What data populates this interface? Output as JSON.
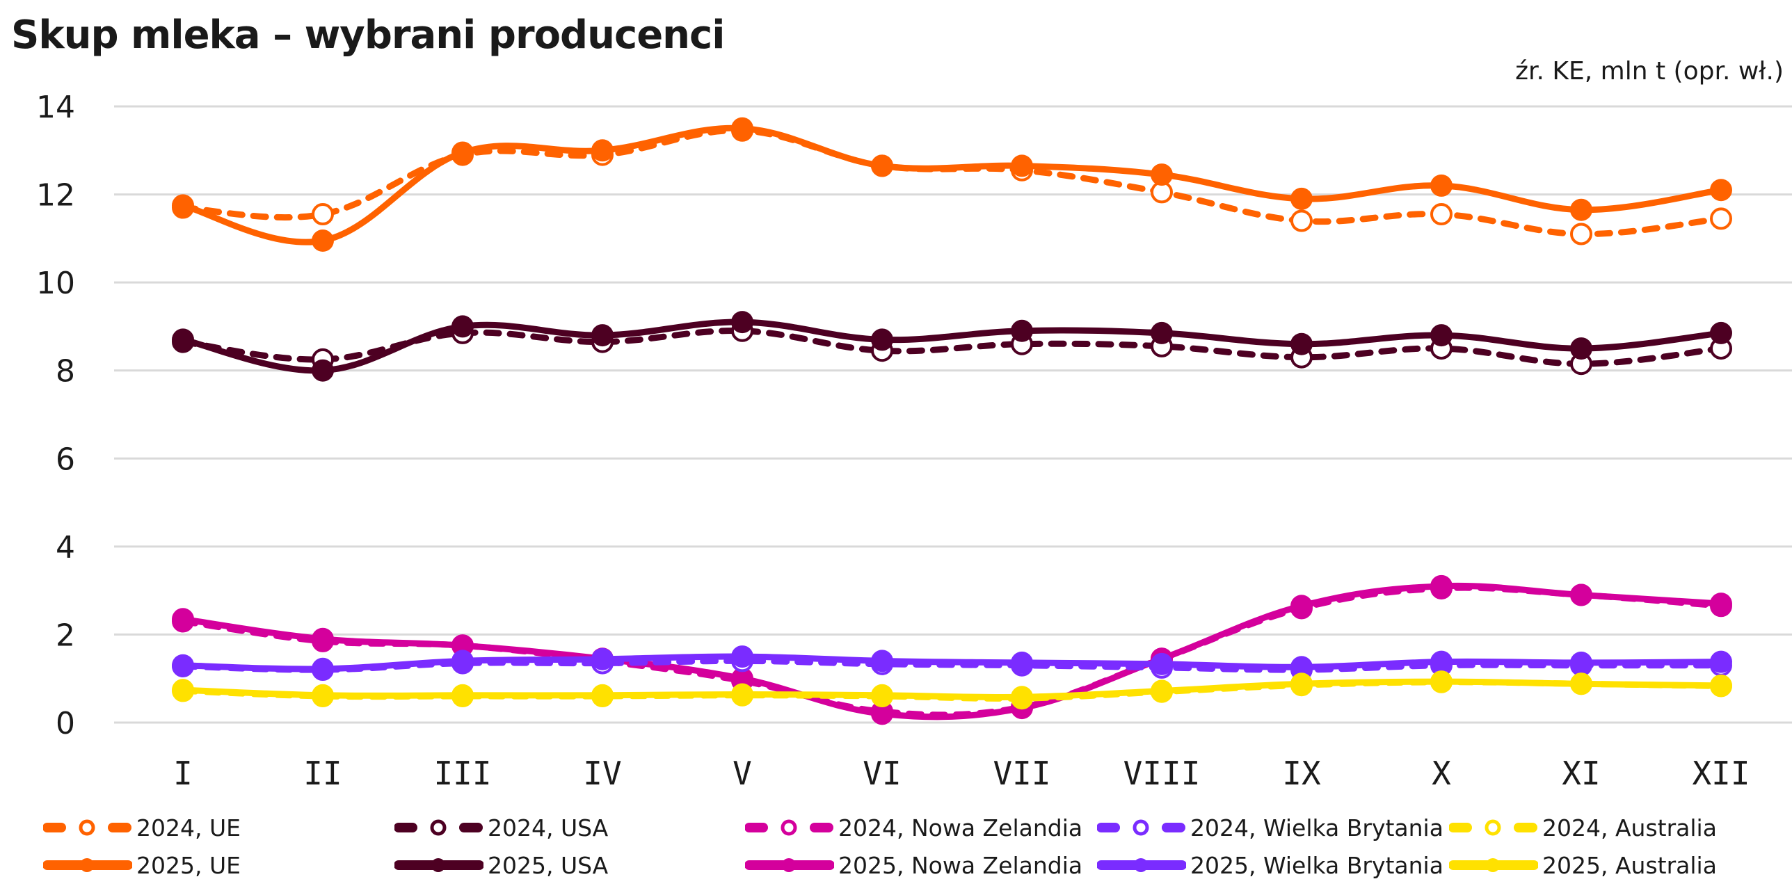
{
  "chart_data": {
    "type": "line",
    "title": "Skup mleka – wybrani producenci",
    "source_note": "źr. KE, mln t (opr. wł.)",
    "xlabel": "",
    "ylabel": "",
    "categories": [
      "I",
      "II",
      "III",
      "IV",
      "V",
      "VI",
      "VII",
      "VIII",
      "IX",
      "X",
      "XI",
      "XII"
    ],
    "ylim": [
      0,
      14
    ],
    "yticks": [
      "0",
      "2",
      "4",
      "6",
      "8",
      "10",
      "12",
      "14"
    ],
    "grid": true,
    "legend_position": "bottom",
    "series": [
      {
        "name": "2024, UE",
        "color": "#ff6200",
        "style": "dashed",
        "marker": "open",
        "values": [
          11.7,
          11.55,
          12.9,
          12.9,
          13.45,
          12.65,
          12.55,
          12.05,
          11.4,
          11.55,
          11.1,
          11.45
        ]
      },
      {
        "name": "2025, UE",
        "color": "#ff6200",
        "style": "solid",
        "marker": "filled",
        "values": [
          11.75,
          10.95,
          12.95,
          13.0,
          13.5,
          12.65,
          12.65,
          12.45,
          11.9,
          12.2,
          11.65,
          12.1
        ]
      },
      {
        "name": "2024, USA",
        "color": "#4d0022",
        "style": "dashed",
        "marker": "open",
        "values": [
          8.65,
          8.25,
          8.85,
          8.65,
          8.9,
          8.45,
          8.6,
          8.55,
          8.3,
          8.5,
          8.15,
          8.5
        ]
      },
      {
        "name": "2025, USA",
        "color": "#4d0022",
        "style": "solid",
        "marker": "filled",
        "values": [
          8.7,
          8.0,
          9.0,
          8.8,
          9.1,
          8.7,
          8.9,
          8.85,
          8.6,
          8.8,
          8.5,
          8.85
        ]
      },
      {
        "name": "2024, Nowa Zelandia",
        "color": "#d4009c",
        "style": "dashed",
        "marker": "open",
        "values": [
          2.3,
          1.85,
          1.75,
          1.4,
          0.95,
          0.25,
          0.35,
          1.45,
          2.6,
          3.05,
          2.9,
          2.65
        ]
      },
      {
        "name": "2025, Nowa Zelandia",
        "color": "#d4009c",
        "style": "solid",
        "marker": "filled",
        "values": [
          2.35,
          1.9,
          1.75,
          1.45,
          1.0,
          0.2,
          0.33,
          1.45,
          2.65,
          3.1,
          2.9,
          2.7
        ]
      },
      {
        "name": "2024, Wielka Brytania",
        "color": "#7a2cff",
        "style": "dashed",
        "marker": "open",
        "values": [
          1.28,
          1.2,
          1.35,
          1.35,
          1.4,
          1.33,
          1.3,
          1.25,
          1.2,
          1.3,
          1.3,
          1.3
        ]
      },
      {
        "name": "2025, Wielka Brytania",
        "color": "#7a2cff",
        "style": "solid",
        "marker": "filled",
        "values": [
          1.3,
          1.22,
          1.4,
          1.44,
          1.5,
          1.4,
          1.36,
          1.33,
          1.26,
          1.38,
          1.36,
          1.38
        ]
      },
      {
        "name": "2024, Australia",
        "color": "#ffe100",
        "style": "dashed",
        "marker": "open",
        "values": [
          0.72,
          0.6,
          0.6,
          0.6,
          0.62,
          0.6,
          0.55,
          0.7,
          0.85,
          0.92,
          0.88,
          0.83
        ]
      },
      {
        "name": "2025, Australia",
        "color": "#ffe100",
        "style": "solid",
        "marker": "filled",
        "values": [
          0.74,
          0.62,
          0.62,
          0.62,
          0.64,
          0.62,
          0.58,
          0.72,
          0.88,
          0.93,
          0.88,
          0.84
        ]
      }
    ]
  }
}
